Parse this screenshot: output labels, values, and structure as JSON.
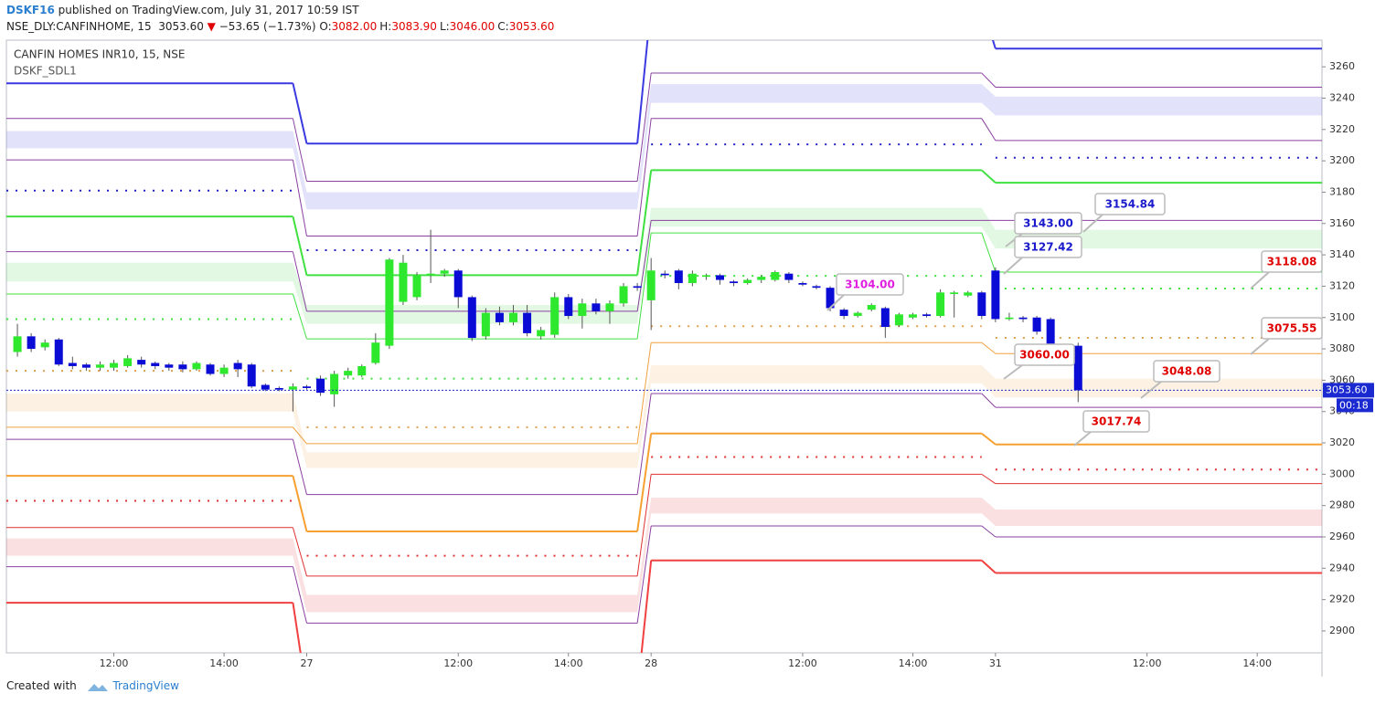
{
  "header": {
    "author": "DSKF16",
    "published": "published on TradingView.com, July 31, 2017 10:59 IST",
    "symbol": "NSE_DLY:CANFINHOME, 15",
    "price": "3053.60",
    "change": "−53.65 (−1.73%)",
    "ohlc": [
      {
        "key": "O:",
        "value": "3082.00"
      },
      {
        "key": "H:",
        "value": "3083.90"
      },
      {
        "key": "L:",
        "value": "3046.00"
      },
      {
        "key": "C:",
        "value": "3053.60"
      }
    ]
  },
  "footer": {
    "created": "Created with",
    "brand": "TradingView"
  },
  "chart_data": {
    "type": "candlestick",
    "title": "CANFIN HOMES INR10, 15, NSE",
    "subtitle": "DSKF_SDL1",
    "up_color": "#2ee82e",
    "down_color": "#0b0bd6",
    "x": [
      -20,
      -19,
      -18,
      -17,
      -16,
      -15,
      -14,
      -13,
      -12,
      -11,
      -10,
      -9,
      -8,
      -7,
      -6,
      -5,
      -4,
      -3,
      -2,
      -1,
      0,
      1,
      2,
      3,
      4,
      5,
      6,
      7,
      8,
      9,
      10,
      11,
      12,
      13,
      14,
      15,
      16,
      17,
      18,
      19,
      20,
      21,
      22,
      23,
      24,
      25,
      26,
      27,
      28,
      29,
      30,
      31,
      32,
      33,
      34,
      35,
      36,
      37,
      38,
      39,
      40,
      41,
      42,
      43,
      44,
      45,
      46,
      47,
      48,
      49,
      50,
      51,
      52,
      53,
      54,
      55,
      56,
      57
    ],
    "open": [
      3078,
      3088,
      3081,
      3086,
      3071,
      3070,
      3068,
      3068,
      3069,
      3073,
      3071,
      3070,
      3070,
      3067,
      3070,
      3064,
      3071,
      3070,
      3057,
      3055,
      3054,
      3056,
      3061,
      3051,
      3063,
      3063,
      3071,
      3082,
      3110,
      3113,
      3127,
      3128,
      3130,
      3113,
      3088,
      3103,
      3097,
      3103,
      3088,
      3089,
      3113,
      3101,
      3109,
      3104,
      3109,
      3120,
      3111,
      3128,
      3130,
      3122,
      3126,
      3127,
      3123,
      3122,
      3124,
      3124,
      3128,
      3122,
      3120,
      3119,
      3105,
      3101,
      3105,
      3106,
      3095,
      3100,
      3102,
      3101,
      3115,
      3114,
      3116,
      3130,
      3099,
      3100,
      3100,
      3099,
      3080,
      3082
    ],
    "high": [
      3096,
      3090,
      3086,
      3087,
      3075,
      3071,
      3072,
      3073,
      3076,
      3075,
      3072,
      3071,
      3072,
      3072,
      3071,
      3070,
      3073,
      3071,
      3058,
      3056,
      3058,
      3057,
      3063,
      3066,
      3068,
      3070,
      3090,
      3138,
      3140,
      3129,
      3156,
      3131,
      3131,
      3114,
      3106,
      3107,
      3108,
      3108,
      3094,
      3116,
      3115,
      3112,
      3112,
      3111,
      3122,
      3122,
      3138,
      3130,
      3131,
      3130,
      3128,
      3128,
      3124,
      3125,
      3127,
      3130,
      3129,
      3123,
      3121,
      3120,
      3106,
      3104,
      3109,
      3107,
      3103,
      3103,
      3103,
      3118,
      3117,
      3117,
      3117,
      3132,
      3103,
      3101,
      3101,
      3100,
      3083,
      3083.9
    ],
    "low": [
      3075,
      3078,
      3079,
      3069,
      3067,
      3066,
      3066,
      3066,
      3068,
      3068,
      3067,
      3066,
      3065,
      3066,
      3063,
      3062,
      3062,
      3055,
      3053,
      3053,
      3040,
      3054,
      3050,
      3043,
      3061,
      3062,
      3070,
      3080,
      3108,
      3111,
      3122,
      3126,
      3106,
      3085,
      3086,
      3095,
      3095,
      3088,
      3086,
      3087,
      3099,
      3093,
      3102,
      3096,
      3107,
      3117,
      3092,
      3125,
      3118,
      3120,
      3124,
      3121,
      3120,
      3121,
      3122,
      3123,
      3122,
      3120,
      3118,
      3104,
      3099,
      3100,
      3104,
      3087,
      3094,
      3099,
      3100,
      3100,
      3100,
      3113,
      3099,
      3097,
      3098,
      3097,
      3089,
      3080,
      3079,
      3046
    ],
    "close": [
      3088,
      3080,
      3084,
      3070,
      3069,
      3068,
      3070,
      3071,
      3074,
      3070,
      3069,
      3068,
      3067,
      3071,
      3064,
      3068,
      3067,
      3056,
      3054,
      3054,
      3056,
      3055,
      3052,
      3064,
      3066,
      3069,
      3084,
      3137,
      3135,
      3127,
      3128,
      3130,
      3113,
      3087,
      3103,
      3097,
      3103,
      3090,
      3092,
      3113,
      3101,
      3109,
      3104,
      3109,
      3120,
      3119,
      3130,
      3127,
      3122,
      3128,
      3127,
      3124,
      3122,
      3124,
      3126,
      3129,
      3124,
      3121,
      3119,
      3106,
      3101,
      3103,
      3108,
      3094,
      3102,
      3102,
      3101,
      3116,
      3116,
      3116,
      3101,
      3099,
      3100,
      3099,
      3091,
      3082,
      3082,
      3053.6
    ],
    "xlim": [
      -20.8,
      74.7
    ],
    "xticks": [
      {
        "value": -13,
        "label": "12:00"
      },
      {
        "value": -5,
        "label": "14:00"
      },
      {
        "value": 1,
        "label": "27"
      },
      {
        "value": 12,
        "label": "12:00"
      },
      {
        "value": 20,
        "label": "14:00"
      },
      {
        "value": 26,
        "label": "28"
      },
      {
        "value": 37,
        "label": "12:00"
      },
      {
        "value": 45,
        "label": "14:00"
      },
      {
        "value": 51,
        "label": "31"
      },
      {
        "value": 62,
        "label": "12:00"
      },
      {
        "value": 70,
        "label": "14:00"
      }
    ],
    "ylim": [
      2886,
      3277
    ],
    "yticks": [
      2900,
      2920,
      2940,
      2960,
      2980,
      3000,
      3020,
      3040,
      3060,
      3080,
      3100,
      3120,
      3140,
      3160,
      3180,
      3200,
      3220,
      3240,
      3260
    ],
    "levels": [
      {
        "color": "#3a3ae0",
        "style": "solid",
        "width": 2,
        "values": [
          3249.5,
          3211,
          3300,
          3271.6
        ]
      },
      {
        "color": "#8a40a0",
        "style": "solid",
        "width": 1,
        "values": [
          3227,
          3187,
          3256,
          3247
        ]
      },
      {
        "color": "#8a40a0",
        "style": "solid",
        "width": 1,
        "values": [
          3200.6,
          3152,
          3227,
          3213
        ]
      },
      {
        "color": "#2020c0",
        "style": "dotted",
        "width": 2,
        "values": [
          3181,
          3143,
          3210.5,
          3202
        ]
      },
      {
        "color": "#40e040",
        "style": "solid",
        "width": 2,
        "values": [
          3164.5,
          3127,
          3194,
          3186
        ]
      },
      {
        "color": "#8a40a0",
        "style": "solid",
        "width": 1,
        "values": [
          3142,
          3104,
          3162,
          3162
        ]
      },
      {
        "color": "#40e040",
        "style": "solid",
        "width": 1,
        "values": [
          3115,
          3086.4,
          3154,
          3129
        ]
      },
      {
        "color": "#40e040",
        "style": "dotted",
        "width": 2,
        "values": [
          3099,
          3061,
          3126.6,
          3118.5
        ]
      },
      {
        "color": "#e0a050",
        "style": "dotted",
        "width": 2,
        "values": [
          3066,
          3030,
          3094.5,
          3087
        ]
      },
      {
        "color": "#f0a040",
        "style": "solid",
        "width": 1,
        "values": [
          3030,
          3019.5,
          3084,
          3077
        ]
      },
      {
        "color": "#8a40a0",
        "style": "solid",
        "width": 1,
        "values": [
          3022.3,
          2987,
          3051.5,
          3042.7
        ]
      },
      {
        "color": "#f5a030",
        "style": "solid",
        "width": 2,
        "values": [
          2999,
          2963.5,
          3026,
          3019
        ]
      },
      {
        "color": "#e03030",
        "style": "dotted",
        "width": 2,
        "values": [
          2983,
          2948,
          3011,
          3003
        ]
      },
      {
        "color": "#e03030",
        "style": "solid",
        "width": 1,
        "values": [
          2966,
          2935,
          3000,
          2994
        ]
      },
      {
        "color": "#8a40a0",
        "style": "solid",
        "width": 1,
        "values": [
          2941,
          2905,
          2967,
          2960
        ]
      },
      {
        "color": "#f04040",
        "style": "solid",
        "width": 2,
        "values": [
          2918,
          2860,
          2945,
          2937
        ]
      }
    ],
    "bands": [
      {
        "color": "#3a3ae0",
        "upper": [
          3219,
          3180,
          3249,
          3241
        ],
        "lower": [
          3208,
          3169,
          3237,
          3229
        ]
      },
      {
        "color": "#40d040",
        "upper": [
          3135,
          3108,
          3170,
          3156
        ],
        "lower": [
          3123,
          3096,
          3158,
          3144
        ]
      },
      {
        "color": "#f0a040",
        "upper": [
          3051.5,
          3014,
          3069.5,
          3061
        ],
        "lower": [
          3040,
          3004,
          3058,
          3049
        ]
      },
      {
        "color": "#e03030",
        "upper": [
          2959,
          2923,
          2985,
          2977.5
        ],
        "lower": [
          2948,
          2912,
          2975,
          2967
        ]
      }
    ],
    "last": {
      "value": 3053.6,
      "label": "3053.60"
    },
    "countdown": "00:18",
    "annotations": [
      {
        "label": "3143.00",
        "color": "#1a1acc"
      },
      {
        "label": "3154.84",
        "color": "#1a1acc"
      },
      {
        "label": "3127.42",
        "color": "#1a1acc"
      },
      {
        "label": "3104.00",
        "color": "#e020e0"
      },
      {
        "label": "3118.08",
        "color": "#e00000"
      },
      {
        "label": "3075.55",
        "color": "#e00000"
      },
      {
        "label": "3060.00",
        "color": "#e00000"
      },
      {
        "label": "3048.08",
        "color": "#e00000"
      },
      {
        "label": "3017.74",
        "color": "#e00000"
      }
    ]
  }
}
